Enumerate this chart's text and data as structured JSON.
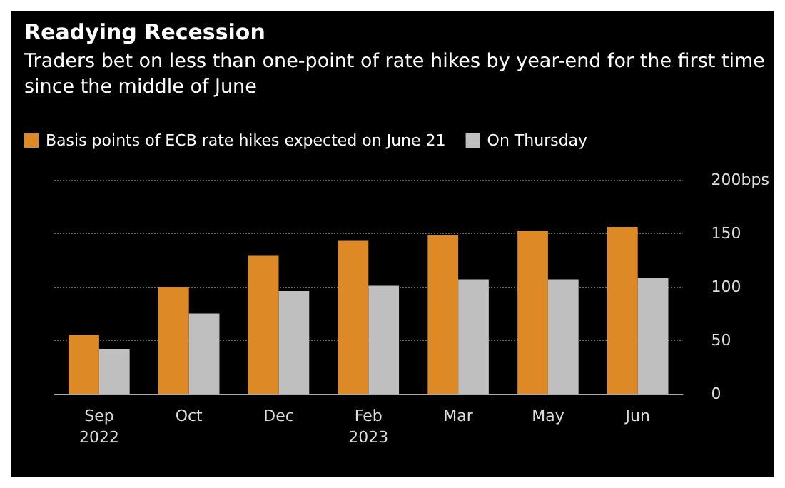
{
  "chart_data": {
    "type": "bar",
    "title": "Readying Recession",
    "subtitle": "Traders bet on less than one-point of rate hikes by year-end for the first time since the middle of June",
    "categories": [
      "Sep\n2022",
      "Oct",
      "Dec",
      "Feb\n2023",
      "Mar",
      "May",
      "Jun"
    ],
    "series": [
      {
        "name": "Basis points of ECB rate hikes expected on June 21",
        "color": "#dd8a26",
        "values": [
          55,
          100,
          129,
          143,
          148,
          152,
          156
        ]
      },
      {
        "name": "On Thursday",
        "color": "#bfbfbf",
        "values": [
          42,
          75,
          96,
          101,
          107,
          107,
          108
        ]
      }
    ],
    "ylim": [
      0,
      200
    ],
    "yticks": [
      0,
      50,
      100,
      150,
      {
        "value": 200,
        "label": "200bps"
      }
    ],
    "grid": "y",
    "legend": "top left"
  }
}
